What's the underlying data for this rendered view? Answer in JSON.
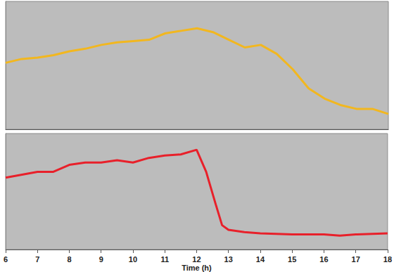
{
  "chart_data": [
    {
      "type": "line",
      "color": "#f2b71f",
      "tick_labels": false,
      "grid": false,
      "xlim": [
        6,
        18
      ],
      "ylim": [
        0,
        100
      ],
      "x": [
        6,
        6.5,
        7,
        7.5,
        8,
        8.5,
        9,
        9.5,
        10,
        10.5,
        11,
        11.5,
        12,
        12.5,
        13,
        13.5,
        14,
        14.5,
        15,
        15.5,
        16,
        16.5,
        17,
        17.5,
        18
      ],
      "values": [
        52,
        55,
        56,
        58,
        61,
        63,
        66,
        68,
        69,
        70,
        75,
        77,
        79,
        76,
        70,
        64,
        66,
        59,
        47,
        32,
        24,
        19,
        16,
        16,
        12
      ]
    },
    {
      "type": "line",
      "color": "#e8202a",
      "tick_labels": "x",
      "grid": false,
      "xlabel": "Time (h)",
      "xlim": [
        6,
        18
      ],
      "xticks": [
        6,
        7,
        8,
        9,
        10,
        11,
        12,
        13,
        14,
        15,
        16,
        17,
        18
      ],
      "ylim": [
        0,
        100
      ],
      "x": [
        6,
        7,
        7.5,
        8,
        8.5,
        9,
        9.5,
        10,
        10.5,
        11,
        11.5,
        12,
        12.3,
        12.6,
        12.8,
        13,
        13.5,
        14,
        15,
        16,
        16.5,
        17,
        18
      ],
      "values": [
        62,
        67,
        67,
        73,
        75,
        75,
        77,
        75,
        79,
        81,
        82,
        86,
        67,
        39,
        21,
        17,
        15,
        14,
        13,
        13,
        12,
        13,
        14
      ]
    }
  ]
}
